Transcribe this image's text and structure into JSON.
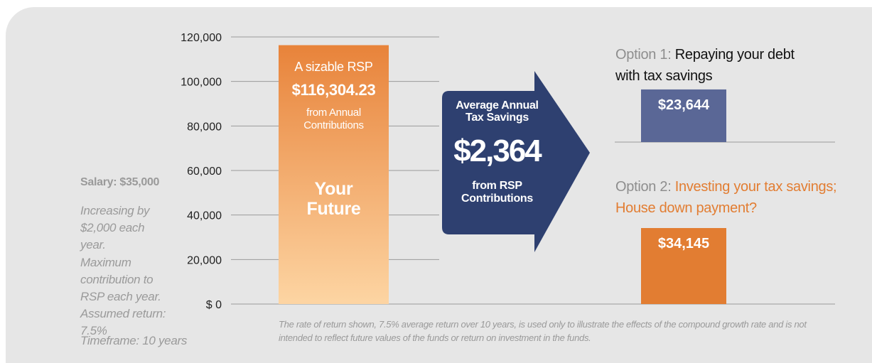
{
  "notes": {
    "salary": "Salary: $35,000",
    "items": [
      "Increasing by $2,000 each year.",
      "Maximum contribution to RSP each year.",
      "Assumed return: 7.5%",
      "Timeframe: 10 years"
    ]
  },
  "chart_data": {
    "type": "bar",
    "ylim": [
      0,
      120000
    ],
    "yticks": [
      {
        "value": 0,
        "label": "$ 0"
      },
      {
        "value": 20000,
        "label": "20,000"
      },
      {
        "value": 40000,
        "label": "40,000"
      },
      {
        "value": 60000,
        "label": "60,000"
      },
      {
        "value": 80000,
        "label": "80,000"
      },
      {
        "value": 100000,
        "label": "100,000"
      },
      {
        "value": 120000,
        "label": "120,000"
      }
    ],
    "grid": true,
    "bar": {
      "title": "A sizable RSP",
      "value": 116304.23,
      "value_label": "$116,304.23",
      "subtitle": "from Annual Contributions",
      "caption": "Your Future",
      "color": "#e8833a"
    },
    "arrow": {
      "title": "Average Annual Tax Savings",
      "savings": "$2,364",
      "subtitle": "from RSP Contributions",
      "color": "#2e4070"
    },
    "options": [
      {
        "prefix": "Option 1:",
        "title": "Repaying your debt with tax savings",
        "value": 23644,
        "value_label": "$23,644",
        "color": "#5a6796",
        "title_color": "#111111"
      },
      {
        "prefix": "Option 2:",
        "title": "Investing your tax savings; House down payment?",
        "value": 34145,
        "value_label": "$34,145",
        "color": "#e27d32",
        "title_color": "#e27d32"
      }
    ]
  },
  "footnote": "The rate of return shown, 7.5% average return over 10 years, is used only to illustrate the effects of the compound growth rate and is not intended to reflect future values of the funds or return on investment in the funds."
}
